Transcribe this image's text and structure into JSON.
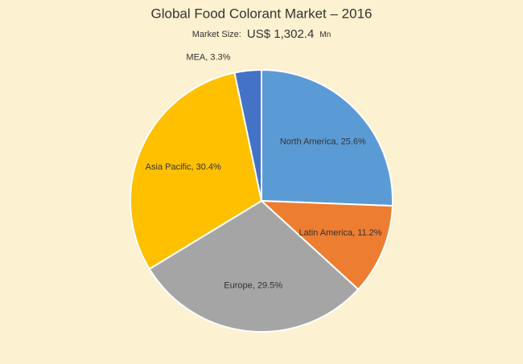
{
  "chart_data": {
    "type": "pie",
    "title": "Global Food Colorant Market – 2016",
    "subtitle": [
      "Market Size:",
      "US$ 1,302.4",
      "Mn"
    ],
    "categories": [
      "North America",
      "Latin America",
      "Europe",
      "Asia Pacific",
      "MEA"
    ],
    "values": [
      25.6,
      11.2,
      29.5,
      30.4,
      3.3
    ],
    "value_labels": [
      "North America, 25.6%",
      "Latin America, 11.2%",
      "Europe, 29.5%",
      "Asia Pacific, 30.4%",
      "MEA, 3.3%"
    ],
    "colors": [
      "#5b9bd5",
      "#ed7d31",
      "#a5a5a5",
      "#ffc000",
      "#4472c4"
    ]
  }
}
